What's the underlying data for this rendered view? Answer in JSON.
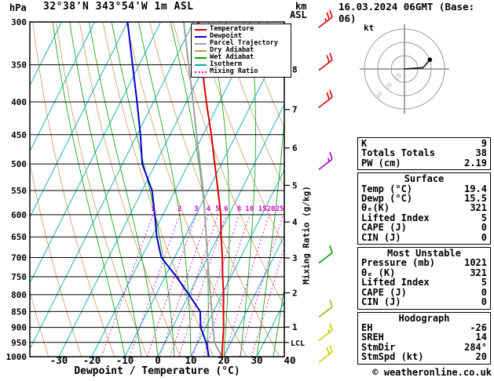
{
  "header": {
    "pressure_unit_label": "hPa",
    "station_title": "32°38'N 343°54'W 1m ASL",
    "altitude_unit_line1": "km",
    "altitude_unit_line2": "ASL",
    "datetime_title": "16.03.2024 06GMT (Base: 06)"
  },
  "legend": [
    {
      "label": "Temperature",
      "color": "#dd0000",
      "dash": "solid"
    },
    {
      "label": "Dewpoint",
      "color": "#0000cc",
      "dash": "solid"
    },
    {
      "label": "Parcel Trajectory",
      "color": "#a0a0a0",
      "dash": "solid"
    },
    {
      "label": "Dry Adiabat",
      "color": "#c89b5a",
      "dash": "solid"
    },
    {
      "label": "Wet Adiabat",
      "color": "#00a000",
      "dash": "solid"
    },
    {
      "label": "Isotherm",
      "color": "#00aaaa",
      "dash": "solid"
    },
    {
      "label": "Mixing Ratio",
      "color": "#dd00dd",
      "dash": "dotted"
    }
  ],
  "axes": {
    "pressure_ticks": [
      300,
      350,
      400,
      450,
      500,
      550,
      600,
      650,
      700,
      750,
      800,
      850,
      900,
      950,
      1000
    ],
    "temp_ticks": [
      -30,
      -20,
      -10,
      0,
      10,
      20,
      30,
      40
    ],
    "xlabel": "Dewpoint / Temperature (°C)",
    "right_axis_label": "Mixing Ratio (g/kg)",
    "km_ticks": [
      {
        "km": 1,
        "p": 899
      },
      {
        "km": 2,
        "p": 795
      },
      {
        "km": 3,
        "p": 701
      },
      {
        "km": 4,
        "p": 616
      },
      {
        "km": 5,
        "p": 540
      },
      {
        "km": 6,
        "p": 472
      },
      {
        "km": 7,
        "p": 411
      },
      {
        "km": 8,
        "p": 356
      }
    ],
    "lcl": {
      "label": "LCL",
      "p": 950
    }
  },
  "chart_data": {
    "type": "line",
    "title": "Skew-T log-P sounding 32°38'N 343°54'W 16.03.2024 06GMT",
    "pressure_hPa": [
      1000,
      950,
      900,
      850,
      800,
      750,
      700,
      650,
      600,
      550,
      500,
      450,
      400,
      350,
      300
    ],
    "series": [
      {
        "name": "Temperature",
        "color": "#dd0000",
        "width": 2,
        "values_C": [
          19.4,
          17.5,
          15.5,
          13,
          10.5,
          7.5,
          4.5,
          1,
          -2.5,
          -7,
          -12,
          -17.5,
          -24,
          -31,
          -38.5
        ]
      },
      {
        "name": "Dewpoint",
        "color": "#0000cc",
        "width": 2,
        "values_C": [
          15.5,
          12.5,
          8.5,
          6,
          0,
          -6.5,
          -14,
          -18.5,
          -22.5,
          -27,
          -34,
          -39,
          -45,
          -52,
          -60
        ]
      },
      {
        "name": "Parcel Trajectory",
        "color": "#a0a0a0",
        "width": 2,
        "values_C": [
          19.4,
          15,
          12.3,
          9.5,
          6.5,
          3.3,
          0,
          -3.5,
          -7.3,
          -11.5,
          -16.5,
          -22,
          -28,
          -35,
          -43
        ]
      }
    ],
    "mixing_ratio_g_kg": [
      1,
      2,
      3,
      4,
      5,
      6,
      8,
      10,
      15,
      20,
      25
    ],
    "mixing_ratio_top_p": 600,
    "isotherms_C": {
      "min": -120,
      "max": 40,
      "step": 10
    },
    "dry_adiabats_K": {
      "min": 230,
      "max": 440,
      "step": 10
    },
    "wet_adiabats_C": [
      -10,
      -5,
      0,
      5,
      10,
      15,
      20,
      25,
      30,
      35
    ],
    "pressure_range": [
      300,
      1000
    ],
    "temp_ticks": [
      -30,
      -20,
      -10,
      0,
      10,
      20,
      30,
      40
    ],
    "xlabel": "Dewpoint / Temperature (°C)"
  },
  "wind_barbs": [
    {
      "p": 300,
      "color": "#dd0000",
      "speed_kt": 25
    },
    {
      "p": 350,
      "color": "#dd0000",
      "speed_kt": 20
    },
    {
      "p": 400,
      "color": "#dd0000",
      "speed_kt": 20
    },
    {
      "p": 500,
      "color": "#9900bb",
      "speed_kt": 15
    },
    {
      "p": 700,
      "color": "#009900",
      "speed_kt": 10
    },
    {
      "p": 850,
      "color": "#88bb00",
      "speed_kt": 10
    },
    {
      "p": 925,
      "color": "#cccc00",
      "speed_kt": 15
    },
    {
      "p": 1000,
      "color": "#cccc00",
      "speed_kt": 20
    }
  ],
  "hodograph": {
    "unit_label": "kt",
    "ring_radii_kt": [
      10,
      20,
      30
    ],
    "ring_labels": [
      "10",
      "20",
      "30"
    ],
    "trace_kt": [
      [
        0,
        0
      ],
      [
        14,
        1
      ],
      [
        19,
        7
      ]
    ],
    "marker_kt": [
      19,
      7
    ]
  },
  "info_panel": {
    "indices": {
      "rows": [
        [
          "K",
          "9"
        ],
        [
          "Totals Totals",
          "38"
        ],
        [
          "PW (cm)",
          "2.19"
        ]
      ]
    },
    "surface": {
      "title": "Surface",
      "rows": [
        [
          "Temp (°C)",
          "19.4"
        ],
        [
          "Dewp (°C)",
          "15.5"
        ],
        [
          "θₑ(K)",
          "321"
        ],
        [
          "Lifted Index",
          "5"
        ],
        [
          "CAPE (J)",
          "0"
        ],
        [
          "CIN (J)",
          "0"
        ]
      ]
    },
    "most_unstable": {
      "title": "Most Unstable",
      "rows": [
        [
          "Pressure (mb)",
          "1021"
        ],
        [
          "θₑ (K)",
          "321"
        ],
        [
          "Lifted Index",
          "5"
        ],
        [
          "CAPE (J)",
          "0"
        ],
        [
          "CIN (J)",
          "0"
        ]
      ]
    },
    "hodograph": {
      "title": "Hodograph",
      "rows": [
        [
          "EH",
          "-26"
        ],
        [
          "SREH",
          "14"
        ],
        [
          "StmDir",
          "284°"
        ],
        [
          "StmSpd (kt)",
          "20"
        ]
      ]
    }
  },
  "footer": {
    "copyright": "© weatheronline.co.uk"
  }
}
